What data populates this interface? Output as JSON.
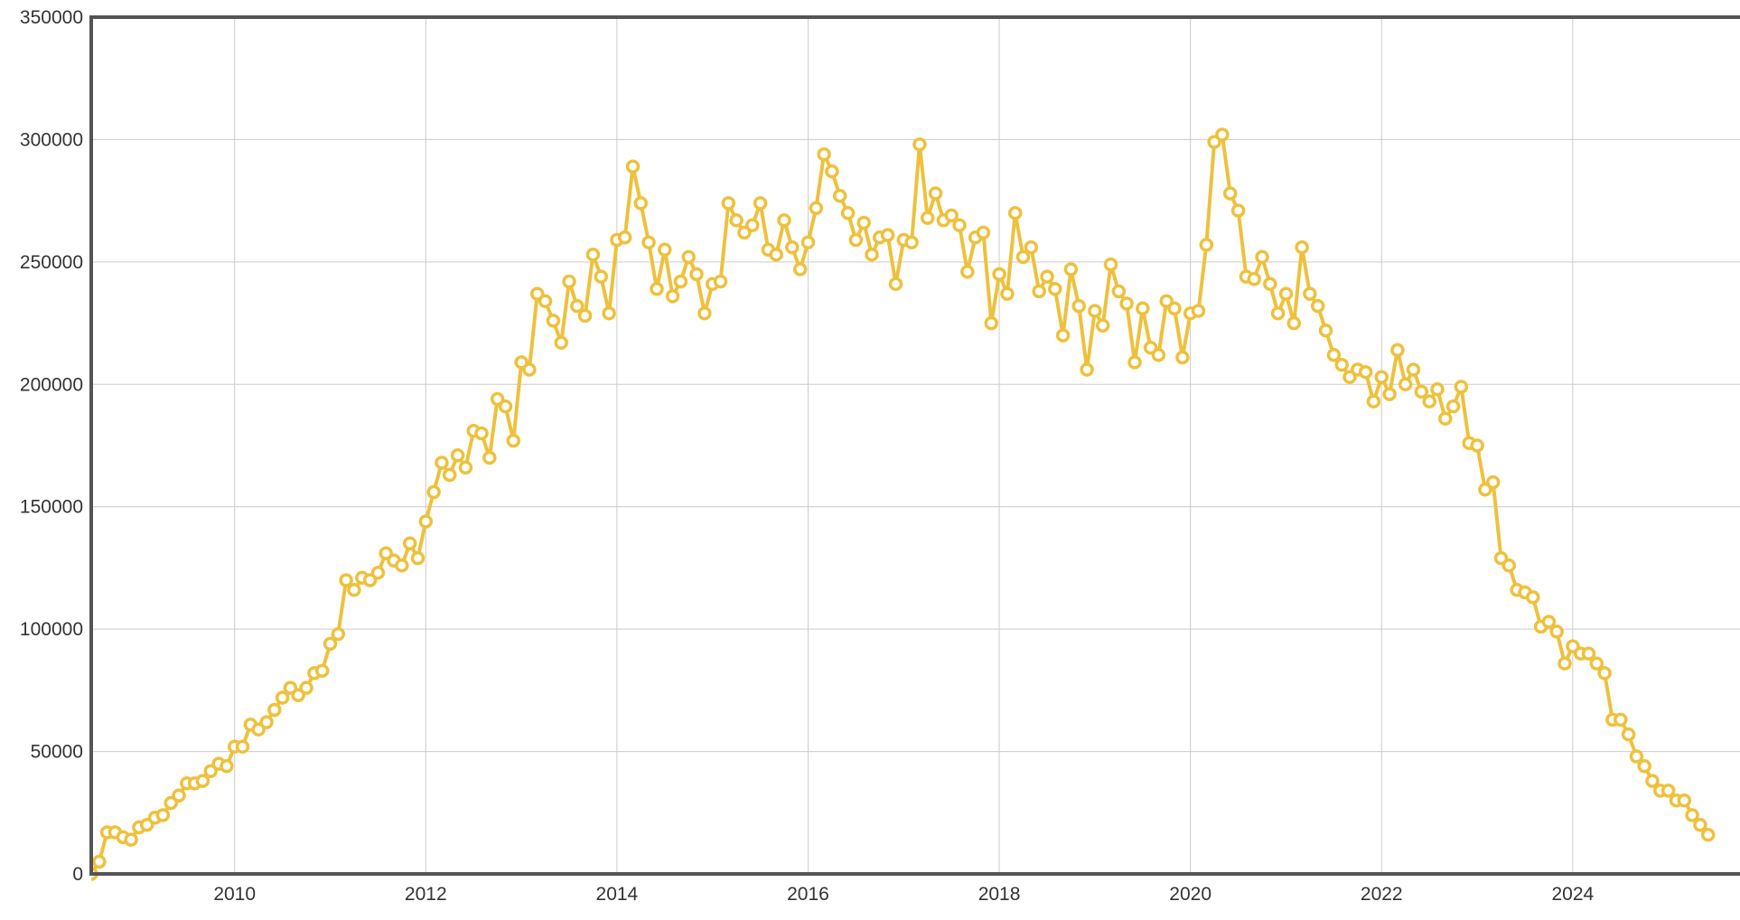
{
  "chart_data": {
    "type": "line",
    "title": "",
    "xlabel": "",
    "ylabel": "",
    "x_axis": {
      "type": "date",
      "range": [
        "2008-07",
        "2025-10"
      ],
      "tick_labels": [
        "2010",
        "2012",
        "2014",
        "2016",
        "2018",
        "2020",
        "2022",
        "2024"
      ]
    },
    "y_axis": {
      "range": [
        0,
        350000
      ],
      "tick_labels": [
        "0",
        "50000",
        "100000",
        "150000",
        "200000",
        "250000",
        "300000",
        "350000"
      ]
    },
    "grid": true,
    "legend": "none",
    "colors": {
      "line": "#eec13d",
      "marker_fill": "#ffffff",
      "axis": "#555555",
      "grid": "#cccccc"
    },
    "series": [
      {
        "points": [
          [
            "2008-07",
            0
          ],
          [
            "2008-08",
            5000
          ],
          [
            "2008-09",
            17000
          ],
          [
            "2008-10",
            17000
          ],
          [
            "2008-11",
            15000
          ],
          [
            "2008-12",
            14000
          ],
          [
            "2009-01",
            19000
          ],
          [
            "2009-02",
            20000
          ],
          [
            "2009-03",
            23000
          ],
          [
            "2009-04",
            24000
          ],
          [
            "2009-05",
            29000
          ],
          [
            "2009-06",
            32000
          ],
          [
            "2009-07",
            37000
          ],
          [
            "2009-08",
            37000
          ],
          [
            "2009-09",
            38000
          ],
          [
            "2009-10",
            42000
          ],
          [
            "2009-11",
            45000
          ],
          [
            "2009-12",
            44000
          ],
          [
            "2010-01",
            52000
          ],
          [
            "2010-02",
            52000
          ],
          [
            "2010-03",
            61000
          ],
          [
            "2010-04",
            59000
          ],
          [
            "2010-05",
            62000
          ],
          [
            "2010-06",
            67000
          ],
          [
            "2010-07",
            72000
          ],
          [
            "2010-08",
            76000
          ],
          [
            "2010-09",
            73000
          ],
          [
            "2010-10",
            76000
          ],
          [
            "2010-11",
            82000
          ],
          [
            "2010-12",
            83000
          ],
          [
            "2011-01",
            94000
          ],
          [
            "2011-02",
            98000
          ],
          [
            "2011-03",
            120000
          ],
          [
            "2011-04",
            116000
          ],
          [
            "2011-05",
            121000
          ],
          [
            "2011-06",
            120000
          ],
          [
            "2011-07",
            123000
          ],
          [
            "2011-08",
            131000
          ],
          [
            "2011-09",
            128000
          ],
          [
            "2011-10",
            126000
          ],
          [
            "2011-11",
            135000
          ],
          [
            "2011-12",
            129000
          ],
          [
            "2012-01",
            144000
          ],
          [
            "2012-02",
            156000
          ],
          [
            "2012-03",
            168000
          ],
          [
            "2012-04",
            163000
          ],
          [
            "2012-05",
            171000
          ],
          [
            "2012-06",
            166000
          ],
          [
            "2012-07",
            181000
          ],
          [
            "2012-08",
            180000
          ],
          [
            "2012-09",
            170000
          ],
          [
            "2012-10",
            194000
          ],
          [
            "2012-11",
            191000
          ],
          [
            "2012-12",
            177000
          ],
          [
            "2013-01",
            209000
          ],
          [
            "2013-02",
            206000
          ],
          [
            "2013-03",
            237000
          ],
          [
            "2013-04",
            234000
          ],
          [
            "2013-05",
            226000
          ],
          [
            "2013-06",
            217000
          ],
          [
            "2013-07",
            242000
          ],
          [
            "2013-08",
            232000
          ],
          [
            "2013-09",
            228000
          ],
          [
            "2013-10",
            253000
          ],
          [
            "2013-11",
            244000
          ],
          [
            "2013-12",
            229000
          ],
          [
            "2014-01",
            259000
          ],
          [
            "2014-02",
            260000
          ],
          [
            "2014-03",
            289000
          ],
          [
            "2014-04",
            274000
          ],
          [
            "2014-05",
            258000
          ],
          [
            "2014-06",
            239000
          ],
          [
            "2014-07",
            255000
          ],
          [
            "2014-08",
            236000
          ],
          [
            "2014-09",
            242000
          ],
          [
            "2014-10",
            252000
          ],
          [
            "2014-11",
            245000
          ],
          [
            "2014-12",
            229000
          ],
          [
            "2015-01",
            241000
          ],
          [
            "2015-02",
            242000
          ],
          [
            "2015-03",
            274000
          ],
          [
            "2015-04",
            267000
          ],
          [
            "2015-05",
            262000
          ],
          [
            "2015-06",
            265000
          ],
          [
            "2015-07",
            274000
          ],
          [
            "2015-08",
            255000
          ],
          [
            "2015-09",
            253000
          ],
          [
            "2015-10",
            267000
          ],
          [
            "2015-11",
            256000
          ],
          [
            "2015-12",
            247000
          ],
          [
            "2016-01",
            258000
          ],
          [
            "2016-02",
            272000
          ],
          [
            "2016-03",
            294000
          ],
          [
            "2016-04",
            287000
          ],
          [
            "2016-05",
            277000
          ],
          [
            "2016-06",
            270000
          ],
          [
            "2016-07",
            259000
          ],
          [
            "2016-08",
            266000
          ],
          [
            "2016-09",
            253000
          ],
          [
            "2016-10",
            260000
          ],
          [
            "2016-11",
            261000
          ],
          [
            "2016-12",
            241000
          ],
          [
            "2017-01",
            259000
          ],
          [
            "2017-02",
            258000
          ],
          [
            "2017-03",
            298000
          ],
          [
            "2017-04",
            268000
          ],
          [
            "2017-05",
            278000
          ],
          [
            "2017-06",
            267000
          ],
          [
            "2017-07",
            269000
          ],
          [
            "2017-08",
            265000
          ],
          [
            "2017-09",
            246000
          ],
          [
            "2017-10",
            260000
          ],
          [
            "2017-11",
            262000
          ],
          [
            "2017-12",
            225000
          ],
          [
            "2018-01",
            245000
          ],
          [
            "2018-02",
            237000
          ],
          [
            "2018-03",
            270000
          ],
          [
            "2018-04",
            252000
          ],
          [
            "2018-05",
            256000
          ],
          [
            "2018-06",
            238000
          ],
          [
            "2018-07",
            244000
          ],
          [
            "2018-08",
            239000
          ],
          [
            "2018-09",
            220000
          ],
          [
            "2018-10",
            247000
          ],
          [
            "2018-11",
            232000
          ],
          [
            "2018-12",
            206000
          ],
          [
            "2019-01",
            230000
          ],
          [
            "2019-02",
            224000
          ],
          [
            "2019-03",
            249000
          ],
          [
            "2019-04",
            238000
          ],
          [
            "2019-05",
            233000
          ],
          [
            "2019-06",
            209000
          ],
          [
            "2019-07",
            231000
          ],
          [
            "2019-08",
            215000
          ],
          [
            "2019-09",
            212000
          ],
          [
            "2019-10",
            234000
          ],
          [
            "2019-11",
            231000
          ],
          [
            "2019-12",
            211000
          ],
          [
            "2020-01",
            229000
          ],
          [
            "2020-02",
            230000
          ],
          [
            "2020-03",
            257000
          ],
          [
            "2020-04",
            299000
          ],
          [
            "2020-05",
            302000
          ],
          [
            "2020-06",
            278000
          ],
          [
            "2020-07",
            271000
          ],
          [
            "2020-08",
            244000
          ],
          [
            "2020-09",
            243000
          ],
          [
            "2020-10",
            252000
          ],
          [
            "2020-11",
            241000
          ],
          [
            "2020-12",
            229000
          ],
          [
            "2021-01",
            237000
          ],
          [
            "2021-02",
            225000
          ],
          [
            "2021-03",
            256000
          ],
          [
            "2021-04",
            237000
          ],
          [
            "2021-05",
            232000
          ],
          [
            "2021-06",
            222000
          ],
          [
            "2021-07",
            212000
          ],
          [
            "2021-08",
            208000
          ],
          [
            "2021-09",
            203000
          ],
          [
            "2021-10",
            206000
          ],
          [
            "2021-11",
            205000
          ],
          [
            "2021-12",
            193000
          ],
          [
            "2022-01",
            203000
          ],
          [
            "2022-02",
            196000
          ],
          [
            "2022-03",
            214000
          ],
          [
            "2022-04",
            200000
          ],
          [
            "2022-05",
            206000
          ],
          [
            "2022-06",
            197000
          ],
          [
            "2022-07",
            193000
          ],
          [
            "2022-08",
            198000
          ],
          [
            "2022-09",
            186000
          ],
          [
            "2022-10",
            191000
          ],
          [
            "2022-11",
            199000
          ],
          [
            "2022-12",
            176000
          ],
          [
            "2023-01",
            175000
          ],
          [
            "2023-02",
            157000
          ],
          [
            "2023-03",
            160000
          ],
          [
            "2023-04",
            129000
          ],
          [
            "2023-05",
            126000
          ],
          [
            "2023-06",
            116000
          ],
          [
            "2023-07",
            115000
          ],
          [
            "2023-08",
            113000
          ],
          [
            "2023-09",
            101000
          ],
          [
            "2023-10",
            103000
          ],
          [
            "2023-11",
            99000
          ],
          [
            "2023-12",
            86000
          ],
          [
            "2024-01",
            93000
          ],
          [
            "2024-02",
            90000
          ],
          [
            "2024-03",
            90000
          ],
          [
            "2024-04",
            86000
          ],
          [
            "2024-05",
            82000
          ],
          [
            "2024-06",
            63000
          ],
          [
            "2024-07",
            63000
          ],
          [
            "2024-08",
            57000
          ],
          [
            "2024-09",
            48000
          ],
          [
            "2024-10",
            44000
          ],
          [
            "2024-11",
            38000
          ],
          [
            "2024-12",
            34000
          ],
          [
            "2025-01",
            34000
          ],
          [
            "2025-02",
            30000
          ],
          [
            "2025-03",
            30000
          ],
          [
            "2025-04",
            24000
          ],
          [
            "2025-05",
            20000
          ],
          [
            "2025-06",
            16000
          ]
        ]
      }
    ]
  }
}
